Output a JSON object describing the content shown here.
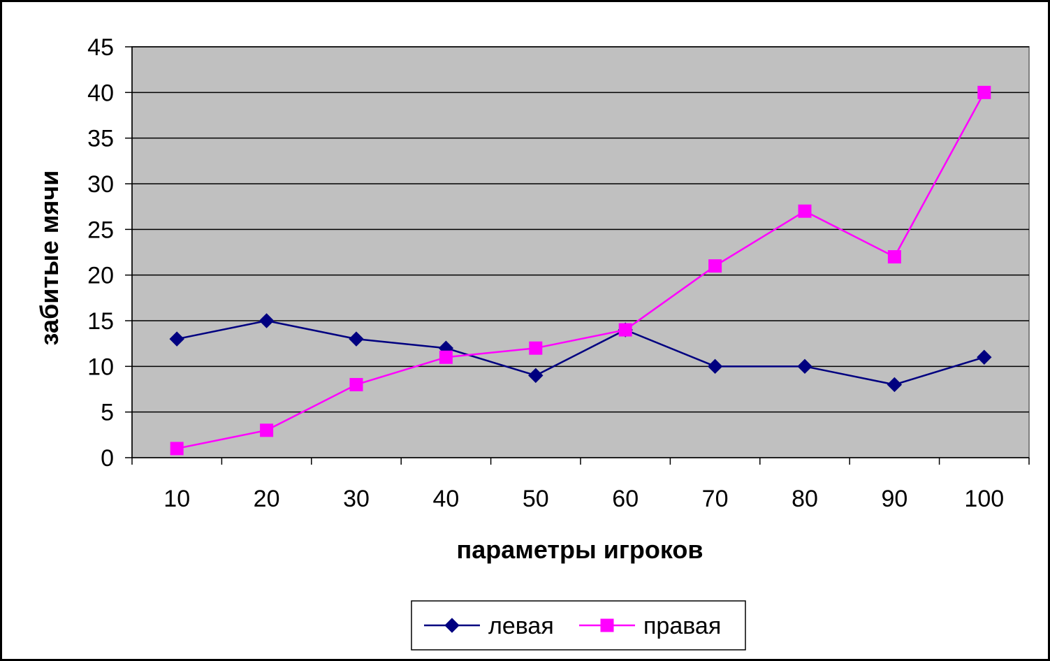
{
  "chart_data": {
    "type": "line",
    "title": "",
    "xlabel": "параметры игроков",
    "ylabel": "забитые мячи",
    "categories": [
      "10",
      "20",
      "30",
      "40",
      "50",
      "60",
      "70",
      "80",
      "90",
      "100"
    ],
    "ylim": [
      0,
      45
    ],
    "yticks": [
      "0",
      "5",
      "10",
      "15",
      "20",
      "25",
      "30",
      "35",
      "40",
      "45"
    ],
    "grid": true,
    "legend_position": "bottom",
    "plot_background": "#C0C0C0",
    "series": [
      {
        "name": "левая",
        "values": [
          13,
          15,
          13,
          12,
          9,
          14,
          10,
          10,
          8,
          11
        ],
        "color": "#000080",
        "marker": "diamond"
      },
      {
        "name": "правая",
        "values": [
          1,
          3,
          8,
          11,
          12,
          14,
          21,
          27,
          22,
          40
        ],
        "color": "#FF00FF",
        "marker": "square"
      }
    ]
  }
}
